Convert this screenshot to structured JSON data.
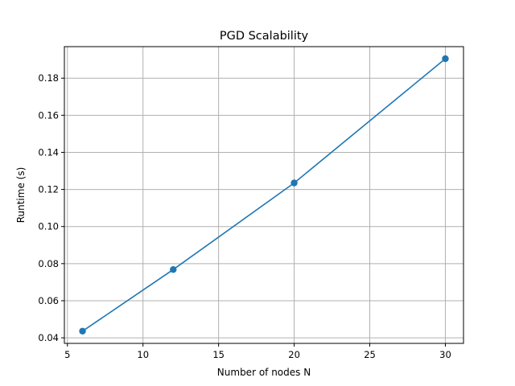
{
  "chart_data": {
    "type": "line",
    "title": "PGD Scalability",
    "xlabel": "Number of nodes N",
    "ylabel": "Runtime (s)",
    "x": [
      6,
      12,
      20,
      30
    ],
    "series": [
      {
        "values": [
          0.0436,
          0.0768,
          0.1235,
          0.1905
        ]
      }
    ],
    "xlim": [
      4.8,
      31.2
    ],
    "ylim": [
      0.037,
      0.197
    ],
    "xticks": [
      5,
      10,
      15,
      20,
      25,
      30
    ],
    "xtick_labels": [
      "5",
      "10",
      "15",
      "20",
      "25",
      "30"
    ],
    "yticks": [
      0.04,
      0.06,
      0.08,
      0.1,
      0.12,
      0.14,
      0.16,
      0.18
    ],
    "ytick_labels": [
      "0.04",
      "0.06",
      "0.08",
      "0.10",
      "0.12",
      "0.14",
      "0.16",
      "0.18"
    ],
    "grid": true,
    "markers": "circle",
    "colors": {
      "line": "#1f77b4"
    }
  }
}
